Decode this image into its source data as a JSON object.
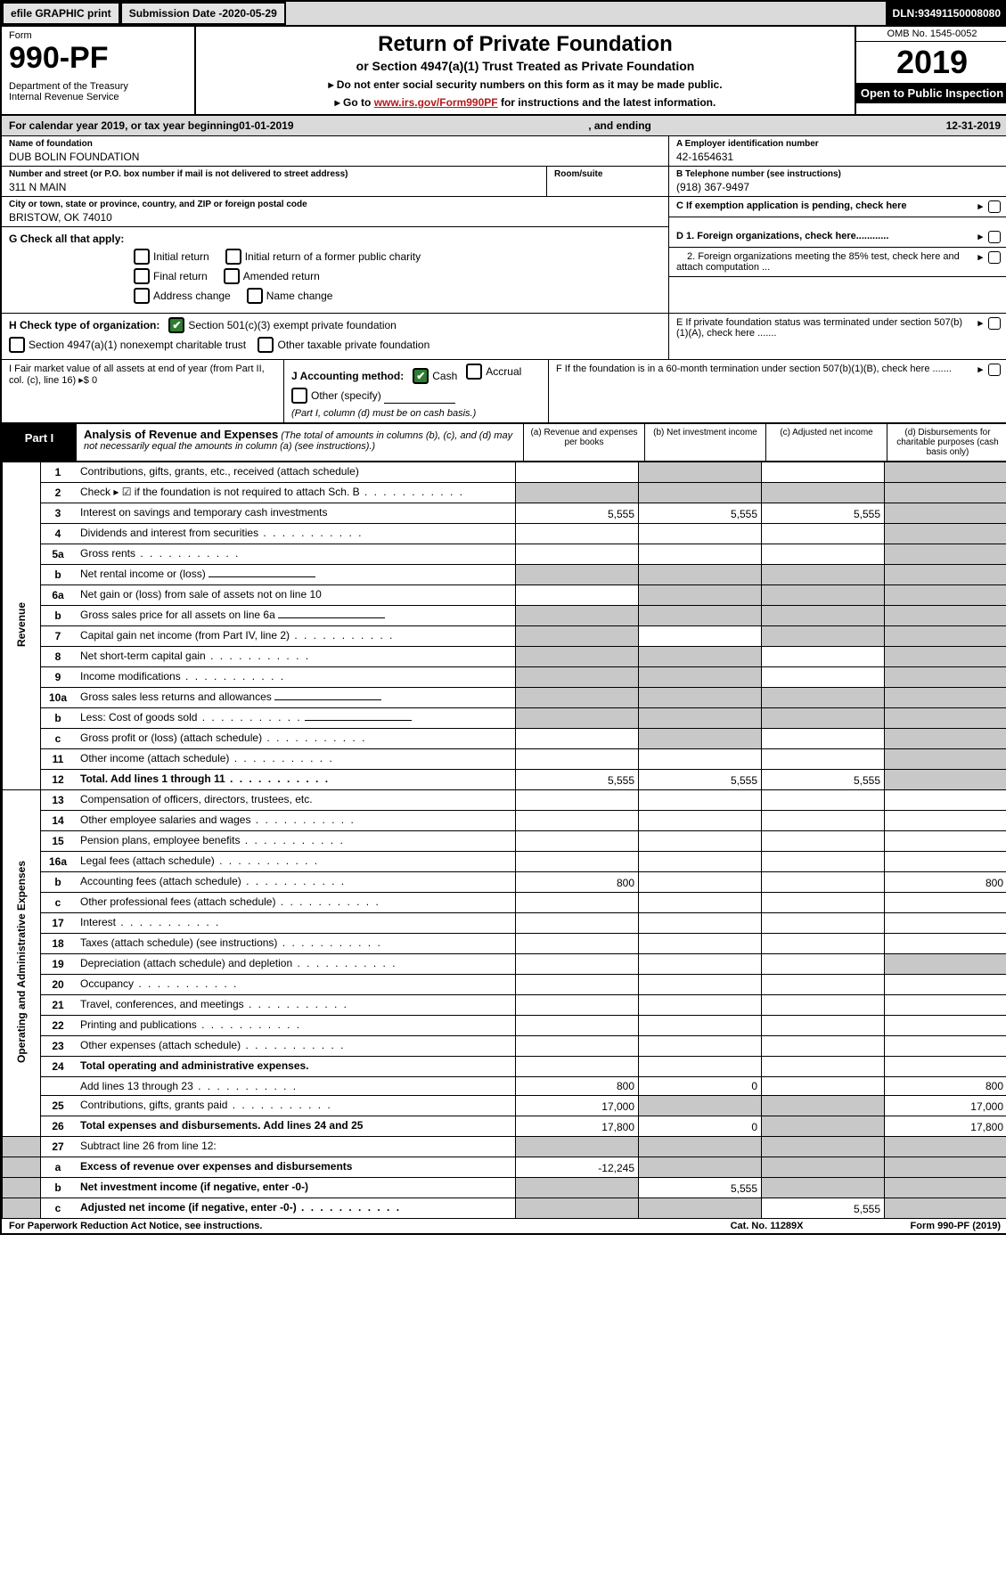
{
  "topbar": {
    "efile": "efile GRAPHIC print",
    "subdate_lbl": "Submission Date - ",
    "subdate": "2020-05-29",
    "dln_lbl": "DLN: ",
    "dln": "93491150008080"
  },
  "header": {
    "form_word": "Form",
    "form_no": "990-PF",
    "dept1": "Department of the Treasury",
    "dept2": "Internal Revenue Service",
    "title": "Return of Private Foundation",
    "subtitle": "or Section 4947(a)(1) Trust Treated as Private Foundation",
    "note1": "▸ Do not enter social security numbers on this form as it may be made public.",
    "note2_pre": "▸ Go to ",
    "note2_link": "www.irs.gov/Form990PF",
    "note2_post": " for instructions and the latest information.",
    "omb": "OMB No. 1545-0052",
    "year": "2019",
    "open": "Open to Public Inspection"
  },
  "calendar": {
    "pre": "For calendar year 2019, or tax year beginning ",
    "begin": "01-01-2019",
    "mid": ", and ending ",
    "end": "12-31-2019"
  },
  "entity": {
    "name_lbl": "Name of foundation",
    "name": "DUB BOLIN FOUNDATION",
    "street_lbl": "Number and street (or P.O. box number if mail is not delivered to street address)",
    "street": "311 N MAIN",
    "room_lbl": "Room/suite",
    "city_lbl": "City or town, state or province, country, and ZIP or foreign postal code",
    "city": "BRISTOW, OK  74010",
    "ein_lbl": "A Employer identification number",
    "ein": "42-1654631",
    "tel_lbl": "B Telephone number (see instructions)",
    "tel": "(918) 367-9497",
    "pending": "C If exemption application is pending, check here"
  },
  "secG": {
    "lbl": "G Check all that apply:",
    "c1": "Initial return",
    "c2": "Initial return of a former public charity",
    "c3": "Final return",
    "c4": "Amended return",
    "c5": "Address change",
    "c6": "Name change"
  },
  "secD": {
    "d1": "D 1. Foreign organizations, check here............",
    "d2": "2. Foreign organizations meeting the 85% test, check here and attach computation ...",
    "e": "E  If private foundation status was terminated under section 507(b)(1)(A), check here .......",
    "f": "F  If the foundation is in a 60-month termination under section 507(b)(1)(B), check here ......."
  },
  "secH": {
    "lbl": "H Check type of organization:",
    "c1": "Section 501(c)(3) exempt private foundation",
    "c2": "Section 4947(a)(1) nonexempt charitable trust",
    "c3": "Other taxable private foundation"
  },
  "secI": {
    "lbl": "I Fair market value of all assets at end of year (from Part II, col. (c), line 16) ▸$ 0",
    "acct_lbl": "J Accounting method:",
    "cash": "Cash",
    "accrual": "Accrual",
    "other": "Other (specify)",
    "note": "(Part I, column (d) must be on cash basis.)"
  },
  "part1": {
    "box": "Part I",
    "title": "Analysis of Revenue and Expenses",
    "desc": "(The total of amounts in columns (b), (c), and (d) may not necessarily equal the amounts in column (a) (see instructions).)",
    "ca": "(a)   Revenue and expenses per books",
    "cb": "(b)  Net investment income",
    "cc": "(c)  Adjusted net income",
    "cd": "(d)  Disbursements for charitable purposes (cash basis only)"
  },
  "revenue_lbl": "Revenue",
  "expenses_lbl": "Operating and Administrative Expenses",
  "rows": [
    {
      "n": "1",
      "d": "Contributions, gifts, grants, etc., received (attach schedule)",
      "a": "",
      "b": "",
      "c": "",
      "sb": 1,
      "sd": 1
    },
    {
      "n": "2",
      "d": "Check ▸ ☑ if the foundation is not required to attach Sch. B",
      "a": "",
      "sa": 1,
      "sb": 1,
      "sc": 1,
      "sd": 1,
      "dots": 1
    },
    {
      "n": "3",
      "d": "Interest on savings and temporary cash investments",
      "a": "5,555",
      "b": "5,555",
      "c": "5,555",
      "sd": 1
    },
    {
      "n": "4",
      "d": "Dividends and interest from securities",
      "sd": 1,
      "dots": 1
    },
    {
      "n": "5a",
      "d": "Gross rents",
      "sd": 1,
      "dots": 1
    },
    {
      "n": "b",
      "d": "Net rental income or (loss)",
      "sa": 1,
      "sb": 1,
      "sc": 1,
      "sd": 1,
      "ul": 1
    },
    {
      "n": "6a",
      "d": "Net gain or (loss) from sale of assets not on line 10",
      "sb": 1,
      "sc": 1,
      "sd": 1
    },
    {
      "n": "b",
      "d": "Gross sales price for all assets on line 6a",
      "sa": 1,
      "sb": 1,
      "sc": 1,
      "sd": 1,
      "ul": 1
    },
    {
      "n": "7",
      "d": "Capital gain net income (from Part IV, line 2)",
      "sa": 1,
      "sc": 1,
      "sd": 1,
      "dots": 1
    },
    {
      "n": "8",
      "d": "Net short-term capital gain",
      "sa": 1,
      "sb": 1,
      "sd": 1,
      "dots": 1
    },
    {
      "n": "9",
      "d": "Income modifications",
      "sa": 1,
      "sb": 1,
      "sd": 1,
      "dots": 1
    },
    {
      "n": "10a",
      "d": "Gross sales less returns and allowances",
      "sa": 1,
      "sb": 1,
      "sc": 1,
      "sd": 1,
      "ul": 1
    },
    {
      "n": "b",
      "d": "Less: Cost of goods sold",
      "sa": 1,
      "sb": 1,
      "sc": 1,
      "sd": 1,
      "ul": 1,
      "dots": 1
    },
    {
      "n": "c",
      "d": "Gross profit or (loss) (attach schedule)",
      "sb": 1,
      "sd": 1,
      "dots": 1
    },
    {
      "n": "11",
      "d": "Other income (attach schedule)",
      "sd": 1,
      "dots": 1
    },
    {
      "n": "12",
      "d": "Total. Add lines 1 through 11",
      "a": "5,555",
      "b": "5,555",
      "c": "5,555",
      "sd": 1,
      "bold": 1,
      "dots": 1
    }
  ],
  "exp": [
    {
      "n": "13",
      "d": "Compensation of officers, directors, trustees, etc."
    },
    {
      "n": "14",
      "d": "Other employee salaries and wages",
      "dots": 1
    },
    {
      "n": "15",
      "d": "Pension plans, employee benefits",
      "dots": 1
    },
    {
      "n": "16a",
      "d": "Legal fees (attach schedule)",
      "dots": 1
    },
    {
      "n": "b",
      "d": "Accounting fees (attach schedule)",
      "a": "800",
      "d4": "800",
      "dots": 1
    },
    {
      "n": "c",
      "d": "Other professional fees (attach schedule)",
      "dots": 1
    },
    {
      "n": "17",
      "d": "Interest",
      "dots": 1
    },
    {
      "n": "18",
      "d": "Taxes (attach schedule) (see instructions)",
      "dots": 1
    },
    {
      "n": "19",
      "d": "Depreciation (attach schedule) and depletion",
      "sd": 1,
      "dots": 1
    },
    {
      "n": "20",
      "d": "Occupancy",
      "dots": 1
    },
    {
      "n": "21",
      "d": "Travel, conferences, and meetings",
      "dots": 1
    },
    {
      "n": "22",
      "d": "Printing and publications",
      "dots": 1
    },
    {
      "n": "23",
      "d": "Other expenses (attach schedule)",
      "dots": 1
    },
    {
      "n": "24",
      "d": "Total operating and administrative expenses.",
      "bold": 1
    },
    {
      "n": "",
      "d": "Add lines 13 through 23",
      "a": "800",
      "b": "0",
      "d4": "800",
      "dots": 1
    },
    {
      "n": "25",
      "d": "Contributions, gifts, grants paid",
      "a": "17,000",
      "sb": 1,
      "sc": 1,
      "d4": "17,000",
      "dots": 1
    },
    {
      "n": "26",
      "d": "Total expenses and disbursements. Add lines 24 and 25",
      "a": "17,800",
      "b": "0",
      "sc": 1,
      "d4": "17,800",
      "bold": 1
    }
  ],
  "net": [
    {
      "n": "27",
      "d": "Subtract line 26 from line 12:",
      "sa": 1,
      "sb": 1,
      "sc": 1,
      "sd": 1
    },
    {
      "n": "a",
      "d": "Excess of revenue over expenses and disbursements",
      "a": "-12,245",
      "sb": 1,
      "sc": 1,
      "sd": 1,
      "bold": 1
    },
    {
      "n": "b",
      "d": "Net investment income (if negative, enter -0-)",
      "sa": 1,
      "b": "5,555",
      "sc": 1,
      "sd": 1,
      "bold": 1
    },
    {
      "n": "c",
      "d": "Adjusted net income (if negative, enter -0-)",
      "sa": 1,
      "sb": 1,
      "c": "5,555",
      "sd": 1,
      "bold": 1,
      "dots": 1
    }
  ],
  "footer": {
    "l": "For Paperwork Reduction Act Notice, see instructions.",
    "m": "Cat. No. 11289X",
    "r": "Form 990-PF (2019)"
  }
}
